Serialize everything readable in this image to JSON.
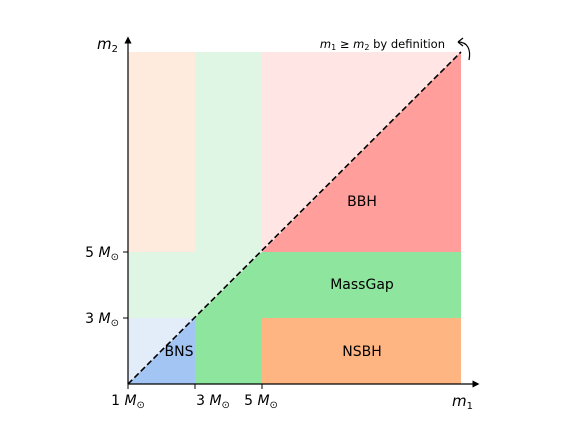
{
  "axes": {
    "x_label": "m",
    "x_label_sub": "1",
    "y_label": "m",
    "y_label_sub": "2",
    "ticks": [
      {
        "value": "1",
        "unit": "M",
        "sub": "⊙"
      },
      {
        "value": "3",
        "unit": "M",
        "sub": "⊙"
      },
      {
        "value": "5",
        "unit": "M",
        "sub": "⊙"
      }
    ]
  },
  "annotation": {
    "m1": "m",
    "m1_sub": "1",
    "relation": " ≥ ",
    "m2": "m",
    "m2_sub": "2",
    "suffix": " by definition"
  },
  "regions": {
    "bbh": "BBH",
    "massgap": "MassGap",
    "nsbh": "NSBH",
    "bns": "BNS"
  },
  "colors": {
    "bbh": "#ff9e9a",
    "bbh_faded": "#ffe5e4",
    "massgap": "#8ee59d",
    "massgap_faded": "#e0f6e5",
    "nsbh": "#ffb582",
    "nsbh_faded": "#ffeade",
    "bns": "#a2c5f4",
    "bns_faded": "#e3edf9"
  }
}
